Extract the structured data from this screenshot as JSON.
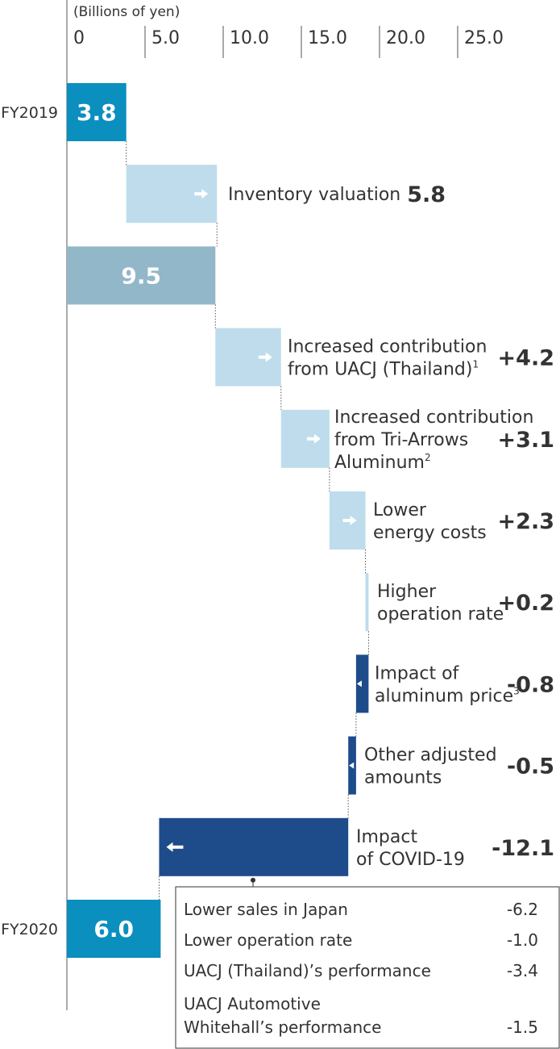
{
  "chart_data": {
    "type": "bar",
    "subtype": "waterfall",
    "orientation": "horizontal",
    "unit_label": "(Billions of yen)",
    "x_ticks": [
      "0",
      "5.0",
      "10.0",
      "15.0",
      "20.0",
      "25.0"
    ],
    "xlim": [
      0,
      25
    ],
    "colors": {
      "total": "#0a8fbf",
      "subtotal": "#92b7c9",
      "increase": "#bedcec",
      "decrease": "#1e4b8a",
      "arrow": "#ffffff"
    },
    "rows": [
      {
        "kind": "total",
        "row_label": "FY2019",
        "bar_label": "3.8",
        "value": 3.8
      },
      {
        "kind": "increase",
        "label_lines": [
          "Inventory valuation"
        ],
        "value_label": "5.8",
        "value": 5.8
      },
      {
        "kind": "subtotal",
        "bar_label": "9.5",
        "value": 9.5
      },
      {
        "kind": "increase",
        "label_lines": [
          "Increased contribution",
          "from UACJ (Thailand)"
        ],
        "sup": "1",
        "value_label": "+4.2",
        "value": 4.2
      },
      {
        "kind": "increase",
        "label_lines": [
          "Increased contribution",
          "from Tri-Arrows",
          "Aluminum"
        ],
        "sup": "2",
        "value_label": "+3.1",
        "value": 3.1
      },
      {
        "kind": "increase",
        "label_lines": [
          "Lower",
          "energy costs"
        ],
        "value_label": "+2.3",
        "value": 2.3
      },
      {
        "kind": "increase",
        "label_lines": [
          "Higher",
          "operation rate"
        ],
        "value_label": "+0.2",
        "value": 0.2
      },
      {
        "kind": "decrease",
        "label_lines": [
          "Impact of",
          "aluminum price"
        ],
        "sup": "3",
        "value_label": "-0.8",
        "value": -0.8
      },
      {
        "kind": "decrease",
        "label_lines": [
          "Other adjusted",
          "amounts"
        ],
        "value_label": "-0.5",
        "value": -0.5
      },
      {
        "kind": "decrease",
        "label_lines": [
          "Impact",
          "of COVID-19"
        ],
        "value_label": "-12.1",
        "value": -12.1
      },
      {
        "kind": "total",
        "row_label": "FY2020",
        "bar_label": "6.0",
        "value": 6.0
      }
    ],
    "breakdown": [
      {
        "label_lines": [
          "Lower sales in Japan"
        ],
        "value": "-6.2"
      },
      {
        "label_lines": [
          "Lower operation rate"
        ],
        "value": "-1.0"
      },
      {
        "label_lines": [
          "UACJ (Thailand)’s performance"
        ],
        "value": "-3.4"
      },
      {
        "label_lines": [
          "UACJ Automotive",
          "Whitehall’s performance"
        ],
        "value": "-1.5"
      }
    ]
  }
}
